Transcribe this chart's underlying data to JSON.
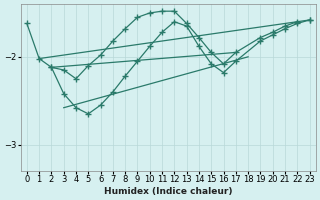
{
  "xlabel": "Humidex (Indice chaleur)",
  "ylabel": "",
  "bg_color": "#d6f0f0",
  "line_color": "#2a7a6a",
  "grid_color": "#b8d8d8",
  "yticks": [
    -3,
    -2
  ],
  "xticks": [
    0,
    1,
    2,
    3,
    4,
    5,
    6,
    7,
    8,
    9,
    10,
    11,
    12,
    13,
    14,
    15,
    16,
    17,
    18,
    19,
    20,
    21,
    22,
    23
  ],
  "xlim": [
    -0.5,
    23.5
  ],
  "ylim": [
    -3.3,
    -1.4
  ],
  "curve_main_x": [
    0,
    1,
    2,
    3,
    4,
    5,
    6,
    7,
    8,
    9,
    10,
    11,
    12,
    13,
    14,
    15,
    16,
    17,
    19,
    20,
    21,
    22,
    23
  ],
  "curve_main_y": [
    -1.62,
    -2.02,
    -2.12,
    -2.15,
    -2.25,
    -2.1,
    -1.98,
    -1.82,
    -1.68,
    -1.55,
    -1.5,
    -1.48,
    -1.48,
    -1.62,
    -1.78,
    -1.95,
    -2.08,
    -1.95,
    -1.78,
    -1.72,
    -1.65,
    -1.6,
    -1.58
  ],
  "curve2_x": [
    2,
    3,
    4,
    5,
    6,
    7,
    8,
    9,
    10,
    11,
    12,
    13,
    14,
    15,
    16,
    17,
    19,
    20,
    21,
    22,
    23
  ],
  "curve2_y": [
    -2.12,
    -2.42,
    -2.58,
    -2.65,
    -2.55,
    -2.4,
    -2.22,
    -2.05,
    -1.88,
    -1.72,
    -1.6,
    -1.65,
    -1.88,
    -2.08,
    -2.18,
    -2.05,
    -1.82,
    -1.75,
    -1.68,
    -1.62,
    -1.58
  ],
  "reg_line1_x": [
    1,
    22
  ],
  "reg_line1_y": [
    -2.02,
    -1.6
  ],
  "reg_line2_x": [
    2,
    17
  ],
  "reg_line2_y": [
    -2.12,
    -1.95
  ],
  "reg_line3_x": [
    3,
    18
  ],
  "reg_line3_y": [
    -2.58,
    -2.0
  ]
}
